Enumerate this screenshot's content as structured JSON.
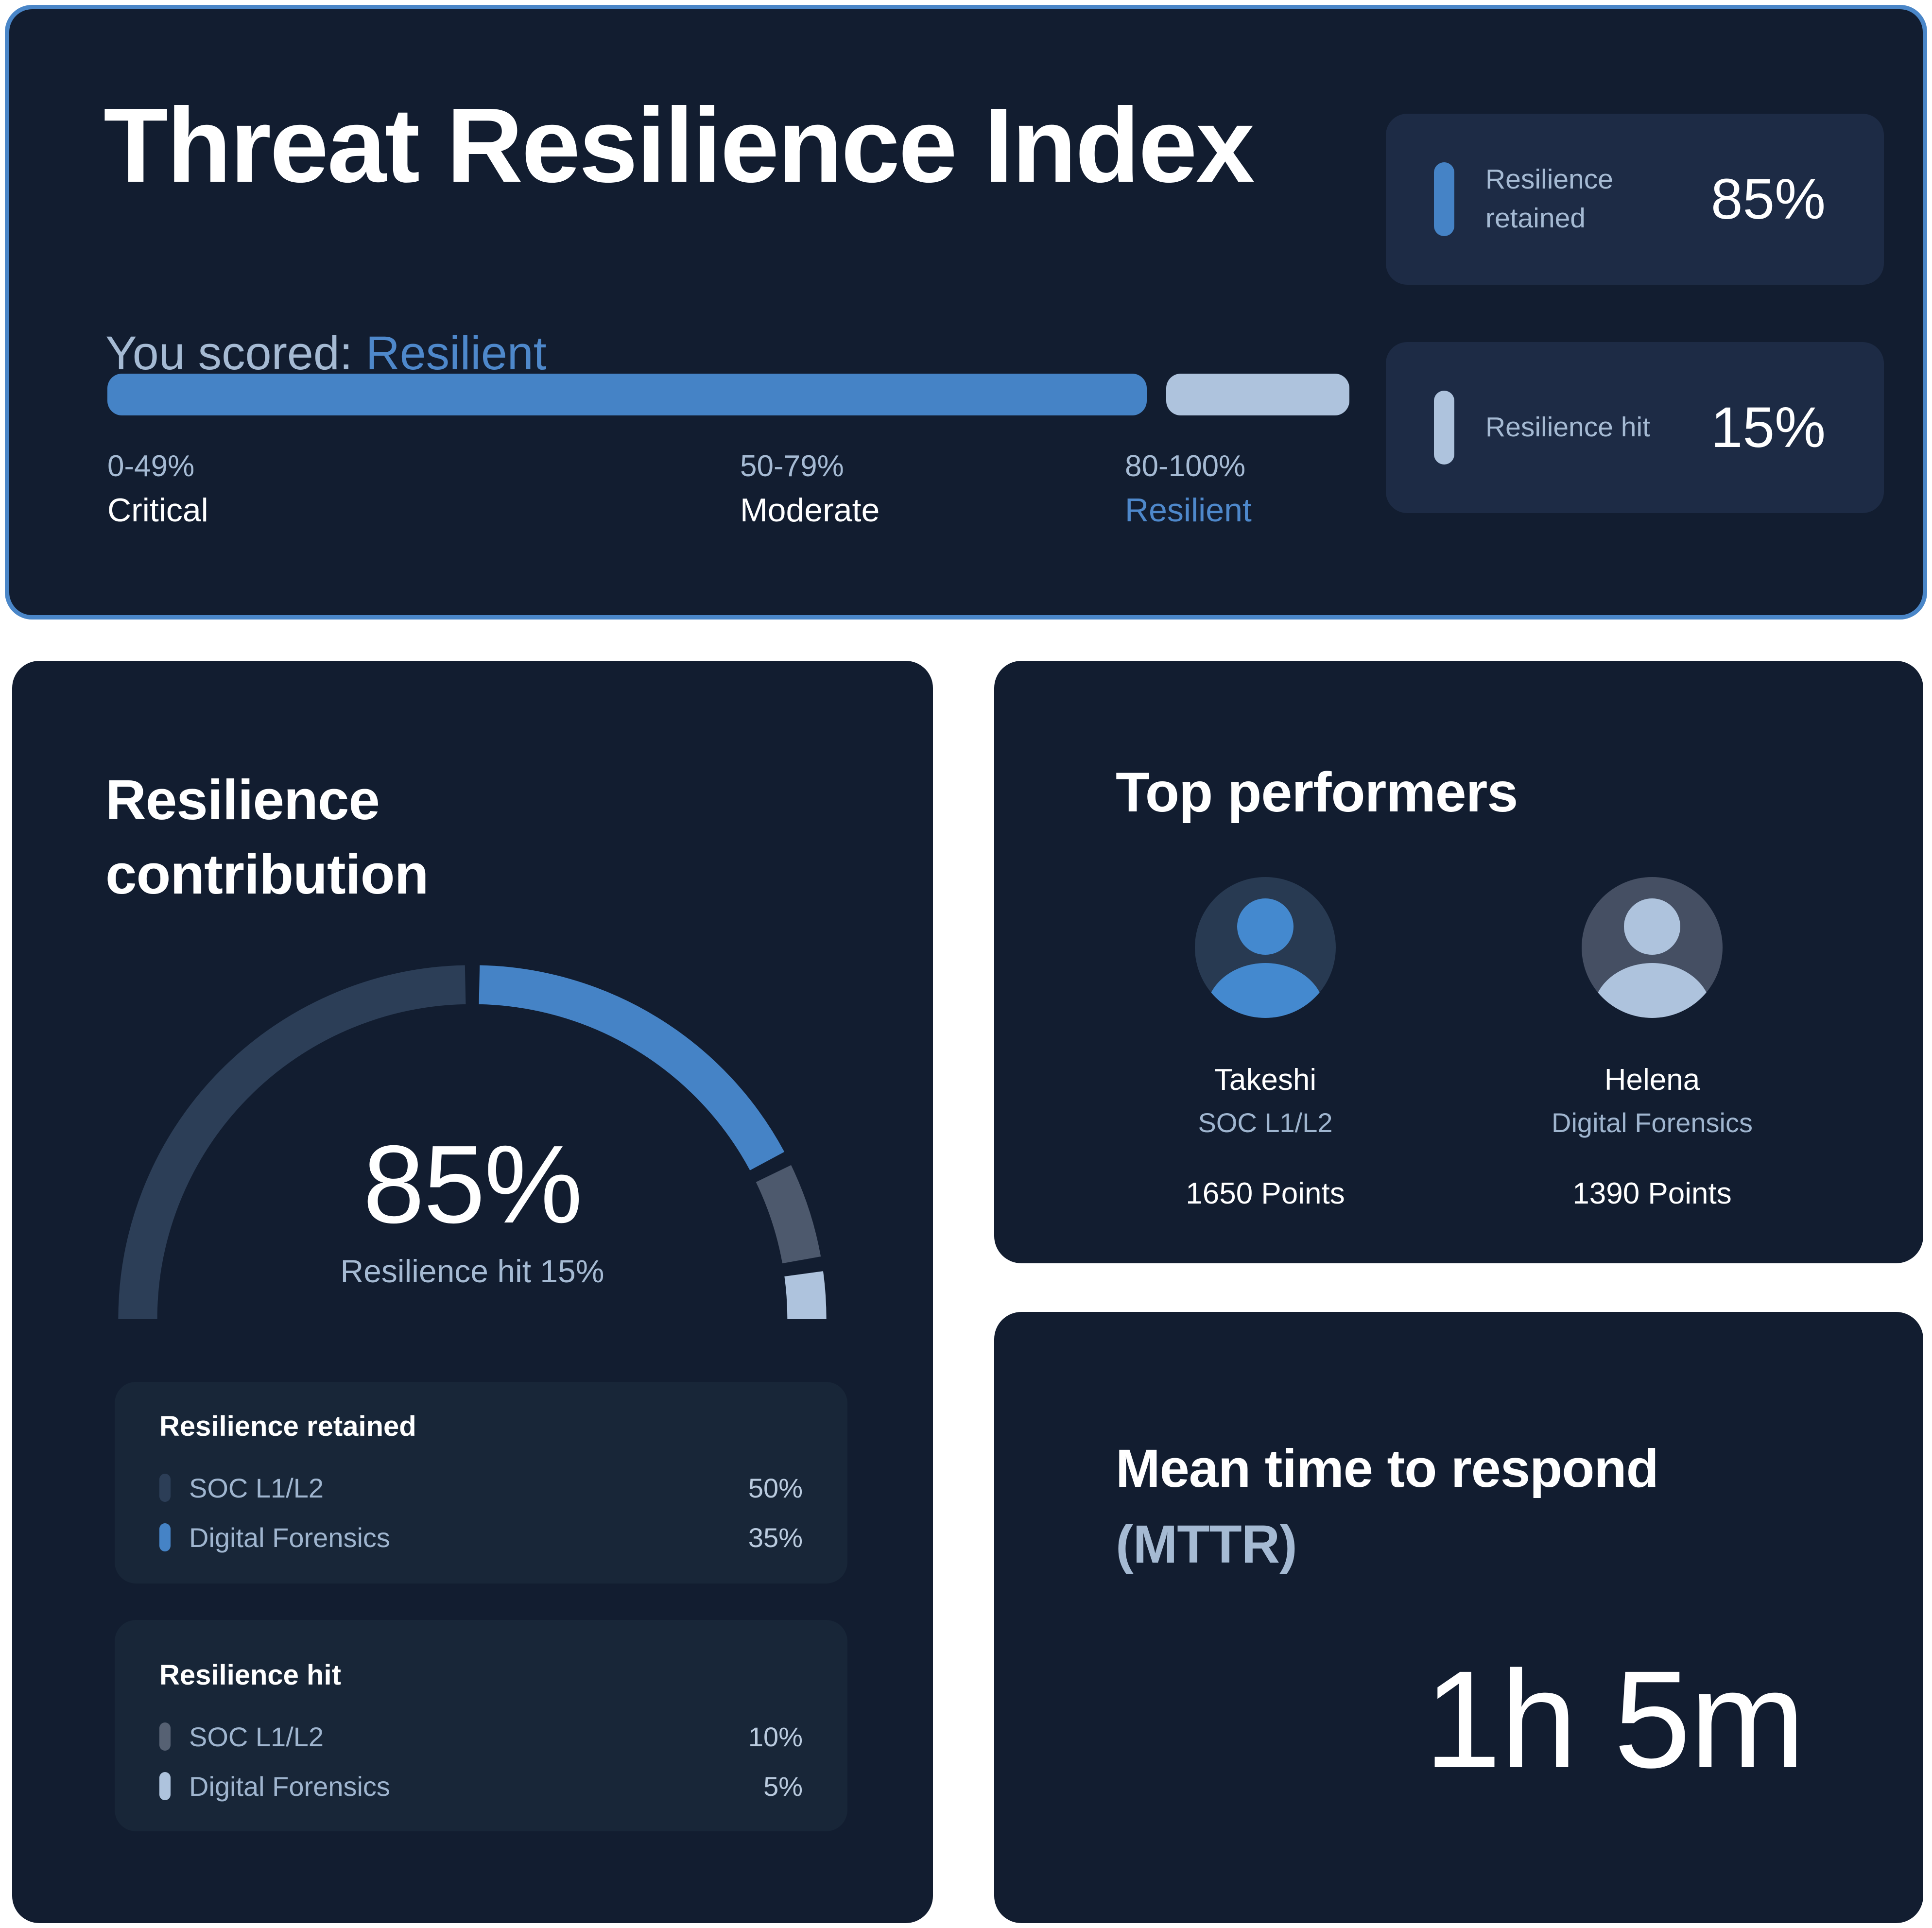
{
  "colors": {
    "page_bg": "#ffffff",
    "card_bg": "#121d30",
    "hero_border": "#4a86c8",
    "accent_blue": "#4583c6",
    "accent_text_blue": "#4e88cb",
    "light_blue_gray": "#aec3dd",
    "muted_text": "#a5bad3",
    "dark_slate": "#2c3e57",
    "gray_slate": "#4d596d"
  },
  "hero": {
    "title": "Threat Resilience Index",
    "score_label": "You scored:",
    "score_value": "Resilient",
    "progress": {
      "percent": 85,
      "remainder": 15
    },
    "scale": [
      {
        "range": "0-49%",
        "label": "Critical"
      },
      {
        "range": "50-79%",
        "label": "Moderate"
      },
      {
        "range": "80-100%",
        "label": "Resilient"
      }
    ],
    "stats": [
      {
        "label": "Resilience retained",
        "value": "85%",
        "pill_color": "#4583c6"
      },
      {
        "label": "Resilience hit",
        "value": "15%",
        "pill_color": "#aec3dd"
      }
    ]
  },
  "contribution": {
    "title": "Resilience contribution",
    "gauge": {
      "center_value": "85%",
      "center_caption": "Resilience hit 15%",
      "segments": [
        {
          "name": "SOC L1/L2 retained",
          "value": 50,
          "color": "#2c3e57"
        },
        {
          "name": "Digital Forensics retained",
          "value": 35,
          "color": "#4583c6"
        },
        {
          "name": "SOC L1/L2 hit",
          "value": 10,
          "color": "#4d596d"
        },
        {
          "name": "Digital Forensics hit",
          "value": 5,
          "color": "#aec3dd"
        }
      ]
    },
    "groups": [
      {
        "title": "Resilience retained",
        "rows": [
          {
            "label": "SOC L1/L2",
            "value": "50%",
            "pill_color": "#2c3e57"
          },
          {
            "label": "Digital Forensics",
            "value": "35%",
            "pill_color": "#4583c6"
          }
        ]
      },
      {
        "title": "Resilience hit",
        "rows": [
          {
            "label": "SOC L1/L2",
            "value": "10%",
            "pill_color": "#566173"
          },
          {
            "label": "Digital Forensics",
            "value": "5%",
            "pill_color": "#aec3dd"
          }
        ]
      }
    ]
  },
  "performers": {
    "title": "Top performers",
    "people": [
      {
        "name": "Takeshi",
        "role": "SOC L1/L2",
        "points": "1650 Points",
        "avatar_bg": "#283a52",
        "avatar_fg": "#4489cf"
      },
      {
        "name": "Helena",
        "role": "Digital Forensics",
        "points": "1390 Points",
        "avatar_bg": "#454f63",
        "avatar_fg": "#aec3dd"
      }
    ]
  },
  "mttr": {
    "title_line1": "Mean time to respond",
    "title_line2": "(MTTR)",
    "value": "1h 5m"
  },
  "chart_data": [
    {
      "type": "bar",
      "title": "Threat Resilience Index score bar",
      "categories": [
        "Resilience retained",
        "Resilience hit"
      ],
      "values": [
        85,
        15
      ],
      "xlabel": "",
      "ylabel": "",
      "annotations": [
        "0-49% Critical",
        "50-79% Moderate",
        "80-100% Resilient"
      ],
      "legend_position": "none",
      "axis_range": [
        0,
        100
      ]
    },
    {
      "type": "pie",
      "title": "Resilience contribution (half-donut gauge)",
      "categories": [
        "SOC L1/L2 retained",
        "Digital Forensics retained",
        "SOC L1/L2 hit",
        "Digital Forensics hit"
      ],
      "values": [
        50,
        35,
        10,
        5
      ],
      "center_label": "85%",
      "center_sublabel": "Resilience hit 15%",
      "arc_span_degrees": 180
    }
  ]
}
